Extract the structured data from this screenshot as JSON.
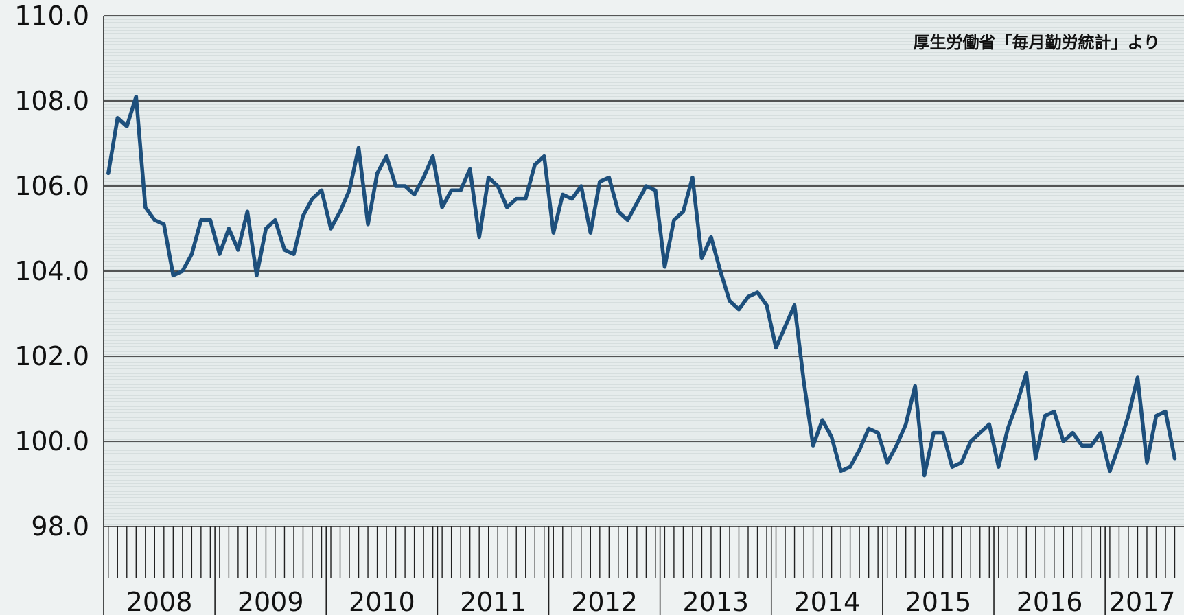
{
  "chart_data": {
    "type": "line",
    "source": "厚生労働省「毎月勤労統計」より",
    "ylim": [
      98.0,
      110.0
    ],
    "y_ticks": [
      "110.0",
      "108.0",
      "106.0",
      "104.0",
      "102.0",
      "100.0",
      "98.0"
    ],
    "y_tick_values": [
      110,
      108,
      106,
      104,
      102,
      100,
      98
    ],
    "years": [
      "2008",
      "2009",
      "2010",
      "2011",
      "2012",
      "2013",
      "2014",
      "2015",
      "2016",
      "2017"
    ],
    "months_in_year": [
      12,
      12,
      12,
      12,
      12,
      12,
      12,
      12,
      12,
      8
    ],
    "grid": "horizontal",
    "line_color": "#1d4f7c",
    "series": [
      {
        "values": [
          106.3,
          107.6,
          107.4,
          108.1,
          105.5,
          105.2,
          105.1,
          103.9,
          104.0,
          104.4,
          105.2,
          105.2,
          104.4,
          105.0,
          104.5,
          105.4,
          103.9,
          105.0,
          105.2,
          104.5,
          104.4,
          105.3,
          105.7,
          105.9,
          105.0,
          105.4,
          105.9,
          106.9,
          105.1,
          106.3,
          106.7,
          106.0,
          106.0,
          105.8,
          106.2,
          106.7,
          105.5,
          105.9,
          105.9,
          106.4,
          104.8,
          106.2,
          106.0,
          105.5,
          105.7,
          105.7,
          106.5,
          106.7,
          104.9,
          105.8,
          105.7,
          106.0,
          104.9,
          106.1,
          106.2,
          105.4,
          105.2,
          105.6,
          106.0,
          105.9,
          104.1,
          105.2,
          105.4,
          106.2,
          104.3,
          104.8,
          104.0,
          103.3,
          103.1,
          103.4,
          103.5,
          103.2,
          102.2,
          102.7,
          103.2,
          101.4,
          99.9,
          100.5,
          100.1,
          99.3,
          99.4,
          99.8,
          100.3,
          100.2,
          99.5,
          99.9,
          100.4,
          101.3,
          99.2,
          100.2,
          100.2,
          99.4,
          99.5,
          100.0,
          100.2,
          100.4,
          99.4,
          100.3,
          100.9,
          101.6,
          99.6,
          100.6,
          100.7,
          100.0,
          100.2,
          99.9,
          99.9,
          100.2,
          99.3,
          99.9,
          100.6,
          101.5,
          99.5,
          100.6,
          100.7,
          99.6
        ]
      }
    ]
  }
}
